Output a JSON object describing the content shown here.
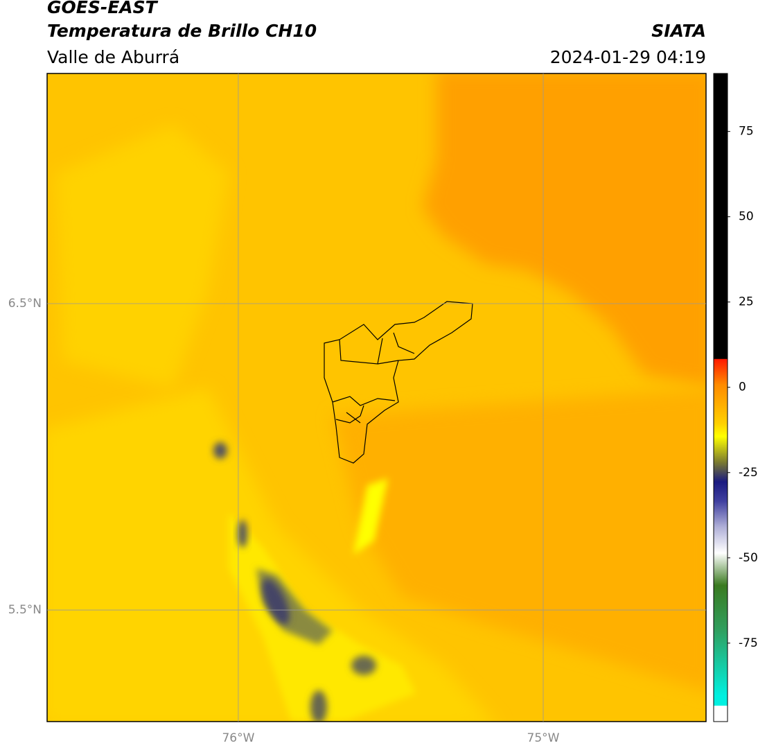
{
  "header": {
    "title": "GOES-EAST",
    "subtitle": "Temperatura de Brillo CH10",
    "region": "Valle de Aburrá",
    "source": "SIATA",
    "datetime": "2024-01-29 04:19"
  },
  "map": {
    "latlim": [
      5.136,
      7.251
    ],
    "lonlim": [
      -76.627,
      -74.466
    ],
    "latticks": [
      {
        "value": 6.5,
        "label": "6.5°N"
      },
      {
        "value": 5.5,
        "label": "5.5°N"
      }
    ],
    "lonticks": [
      {
        "value": -76,
        "label": "76°W"
      },
      {
        "value": -75,
        "label": "75°W"
      }
    ]
  },
  "colorbar": {
    "lim": [
      -98,
      92
    ],
    "ticks": [
      75,
      50,
      25,
      0,
      -25,
      -50,
      -75
    ]
  }
}
